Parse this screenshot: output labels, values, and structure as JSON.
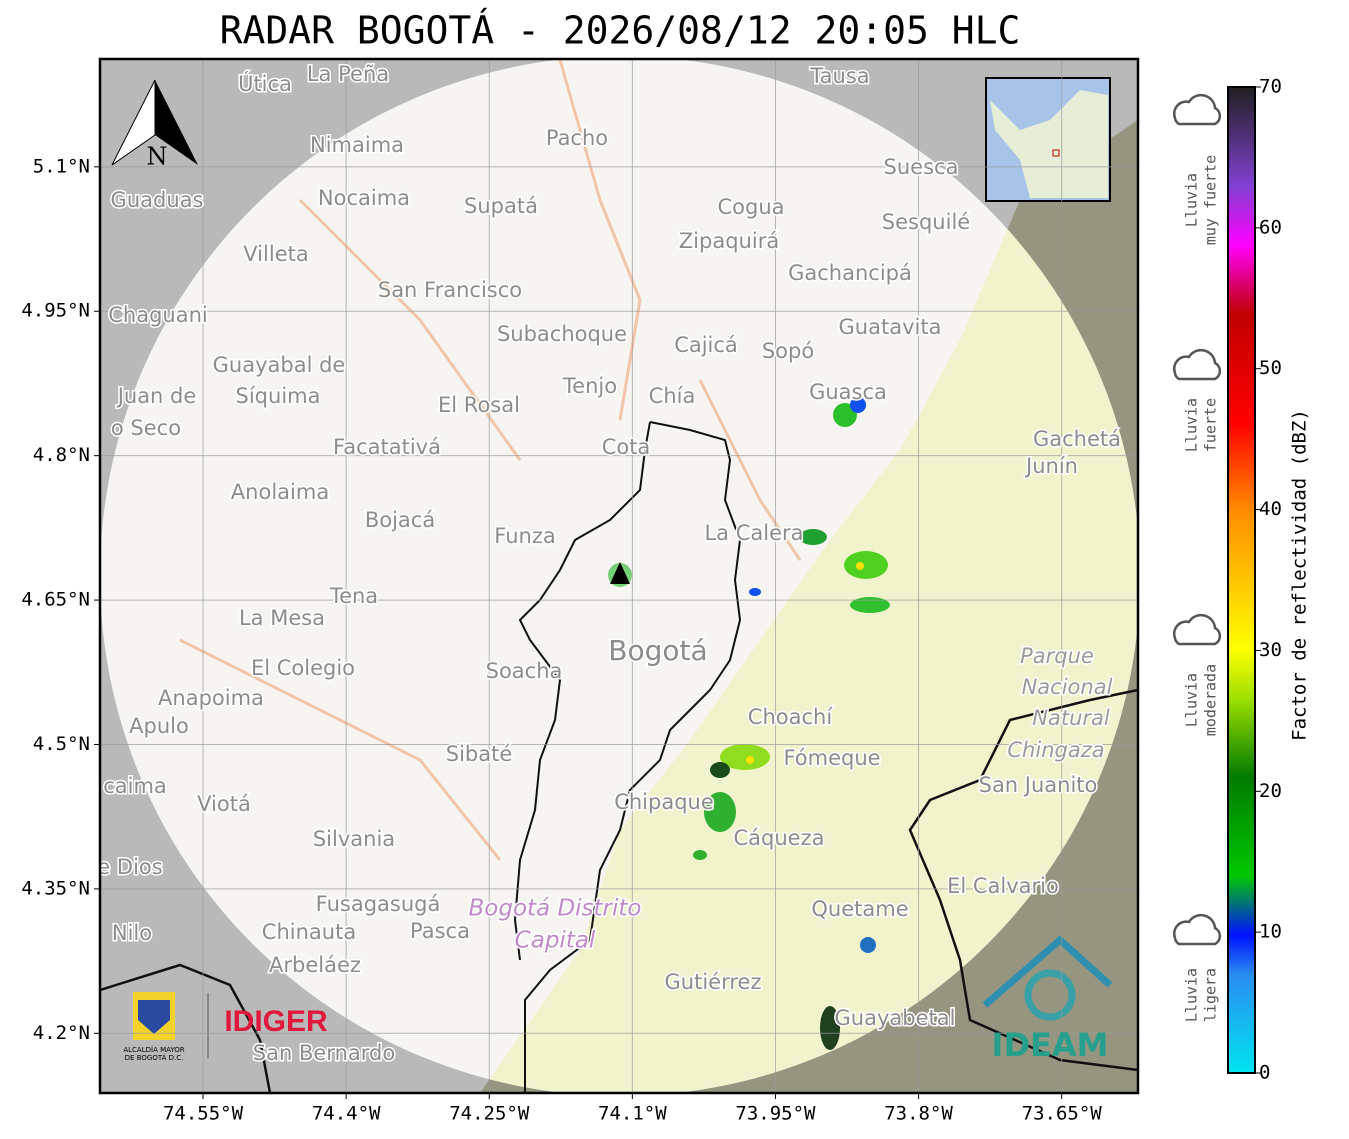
{
  "title": "RADAR BOGOTÁ - 2026/08/12 20:05 HLC",
  "map": {
    "compass": "N",
    "xlim": [
      -74.658,
      -73.57
    ],
    "ylim": [
      4.138,
      5.212
    ],
    "xticks": [
      {
        "value": -74.55,
        "label": "74.55°W"
      },
      {
        "value": -74.4,
        "label": "74.4°W"
      },
      {
        "value": -74.25,
        "label": "74.25°W"
      },
      {
        "value": -74.1,
        "label": "74.1°W"
      },
      {
        "value": -73.95,
        "label": "73.95°W"
      },
      {
        "value": -73.8,
        "label": "73.8°W"
      },
      {
        "value": -73.65,
        "label": "73.65°W"
      }
    ],
    "yticks": [
      {
        "value": 5.1,
        "label": "5.1°N"
      },
      {
        "value": 4.95,
        "label": "4.95°N"
      },
      {
        "value": 4.8,
        "label": "4.8°N"
      },
      {
        "value": 4.65,
        "label": "4.65°N"
      },
      {
        "value": 4.5,
        "label": "4.5°N"
      },
      {
        "value": 4.35,
        "label": "4.35°N"
      },
      {
        "value": 4.2,
        "label": "4.2°N"
      }
    ],
    "places": [
      "La Peña",
      "Útica",
      "Tausa",
      "Pacho",
      "Nimaima",
      "Guaduas",
      "Nocaima",
      "Supatá",
      "Cogua",
      "Suesca",
      "Sesquilé",
      "Villeta",
      "Zipaquirá",
      "Gachancipá",
      "San Francisco",
      "Chaguani",
      "Guatavita",
      "Subachoque",
      "Cajicá",
      "Sopó",
      "Guayabal de",
      "Síquima",
      "Tenjo",
      "Juan de",
      "Chía",
      "El Rosal",
      "Guasca",
      "o Seco",
      "Cota",
      "Facatativá",
      "Gachetá",
      "Junín",
      "Anolaima",
      "Bojacá",
      "Funza",
      "La Calera",
      "Tena",
      "La Mesa",
      "Bogotá",
      "Parque",
      "Nacional",
      "El Colegio",
      "Soacha",
      "Anapoima",
      "Natural",
      "Apulo",
      "Choachí",
      "Chingaza",
      "Fómeque",
      "Sibaté",
      "San Juanito",
      "caima",
      "Viotá",
      "Chipaque",
      "Cáqueza",
      "Silvania",
      "e Dios",
      "El Calvario",
      "Fusagasugá",
      "Bogotá Distrito",
      "Quetame",
      "Nilo",
      "Chinauta",
      "Pasca",
      "Capital",
      "Arbeláez",
      "Gutiérrez",
      "Guayabetal",
      "San Bernardo",
      "IDIGER",
      "IDEAM"
    ]
  },
  "colorbar": {
    "label": "Factor de reflectividad (dBZ)",
    "lim": [
      0,
      70
    ],
    "ticks": [
      0,
      10,
      20,
      30,
      40,
      50,
      60,
      70
    ]
  },
  "intensity_legend": [
    [
      "Lluvia",
      "muy fuerte"
    ],
    [
      "Lluvia",
      "fuerte"
    ],
    [
      "Lluvia",
      "moderada"
    ],
    [
      "Lluvia",
      "ligera"
    ]
  ],
  "alcaldia": [
    "ALCALDÍA MAYOR",
    "DE BOGOTÁ D.C."
  ]
}
